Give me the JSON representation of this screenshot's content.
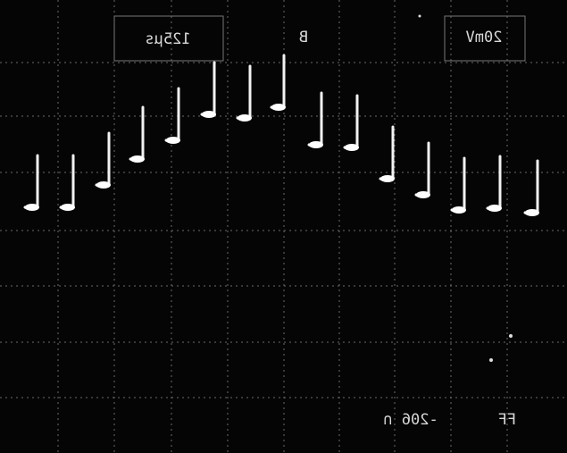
{
  "screen": {
    "timebase": "125µs",
    "channel": "B",
    "scale": "20mV",
    "readout": "-206 ∩",
    "marker": "FF"
  }
}
